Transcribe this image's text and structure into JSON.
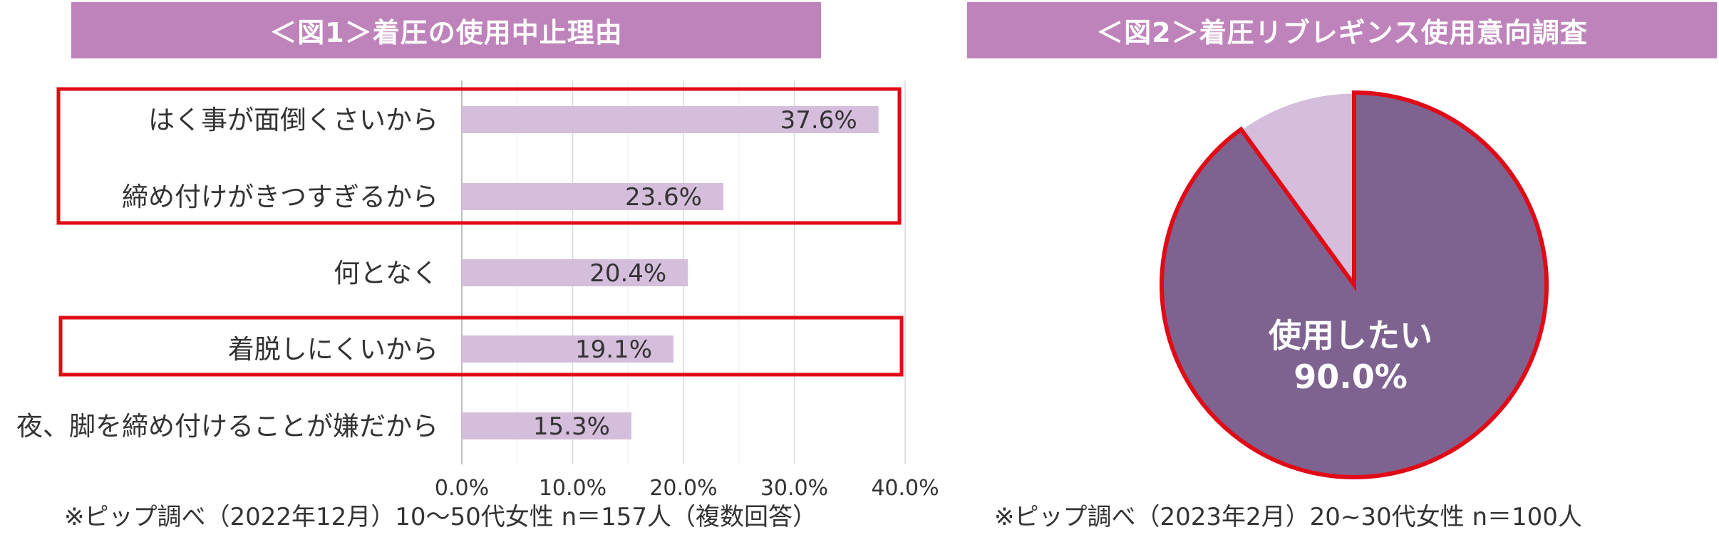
{
  "figure1": {
    "title": "＜図1＞着圧の使用中止理由",
    "footnote": "※ピップ調べ（2022年12月）10〜50代女性 n＝157人（複数回答）"
  },
  "figure2": {
    "title": "＜図2＞着圧リブレギンス使用意向調査",
    "footnote": "※ピップ調べ（2023年2月）20~30代女性 n＝100人"
  },
  "colors": {
    "title_bg": "#bf83bb",
    "bar_fill": "#d5bedb",
    "pie_main": "#7e6391",
    "pie_other": "#d5bedb",
    "highlight_red": "#e00b16",
    "gridline": "#d9d9d9"
  },
  "chart_data": [
    {
      "type": "bar",
      "orientation": "horizontal",
      "title": "＜図1＞着圧の使用中止理由",
      "categories": [
        "はく事が面倒くさいから",
        "締め付けがきつすぎるから",
        "何となく",
        "着脱しにくいから",
        "夜、脚を締め付けることが嫌だから"
      ],
      "values": [
        37.6,
        23.6,
        20.4,
        19.1,
        15.3
      ],
      "value_labels": [
        "37.6%",
        "23.6%",
        "20.4%",
        "19.1%",
        "15.3%"
      ],
      "xlim": [
        0,
        40
      ],
      "xticks": [
        "0.0%",
        "10.0%",
        "20.0%",
        "30.0%",
        "40.0%"
      ],
      "grid": true,
      "highlighted_categories": [
        "はく事が面倒くさいから",
        "締め付けがきつすぎるから",
        "着脱しにくいから"
      ]
    },
    {
      "type": "pie",
      "title": "＜図2＞着圧リブレギンス使用意向調査",
      "slices": [
        {
          "label": "使用したい",
          "value": 90.0,
          "value_label": "90.0%"
        },
        {
          "label": "",
          "value": 10.0
        }
      ],
      "highlighted_slice": "使用したい"
    }
  ]
}
